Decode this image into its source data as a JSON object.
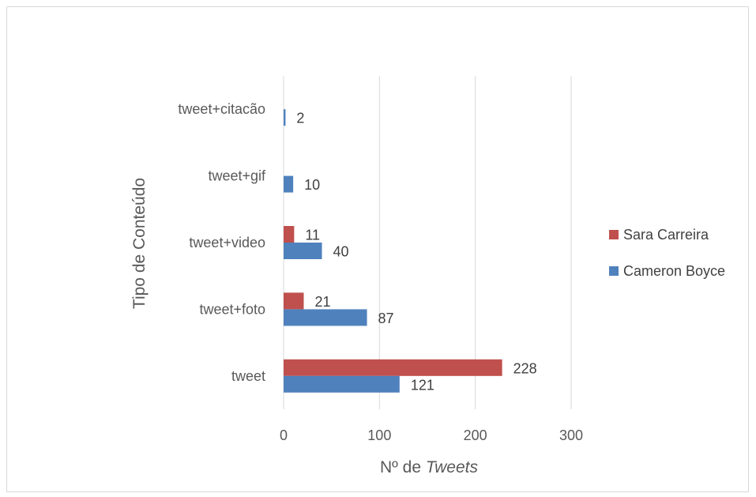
{
  "chart_data": {
    "type": "bar",
    "orientation": "horizontal",
    "categories": [
      "tweet+citacão",
      "tweet+gif",
      "tweet+video",
      "tweet+foto",
      "tweet"
    ],
    "series": [
      {
        "name": "Sara Carreira",
        "color": "#c0504d",
        "values": [
          null,
          null,
          11,
          21,
          228
        ]
      },
      {
        "name": "Cameron Boyce",
        "color": "#4f81bd",
        "values": [
          2,
          10,
          40,
          87,
          121
        ]
      }
    ],
    "xlabel_prefix": "Nº de ",
    "xlabel_emphasis": "Tweets",
    "ylabel": "Tipo de Conteúdo",
    "xlim": [
      0,
      300
    ],
    "xticks": [
      0,
      100,
      200,
      300
    ],
    "grid": "vertical",
    "legend": "right"
  }
}
